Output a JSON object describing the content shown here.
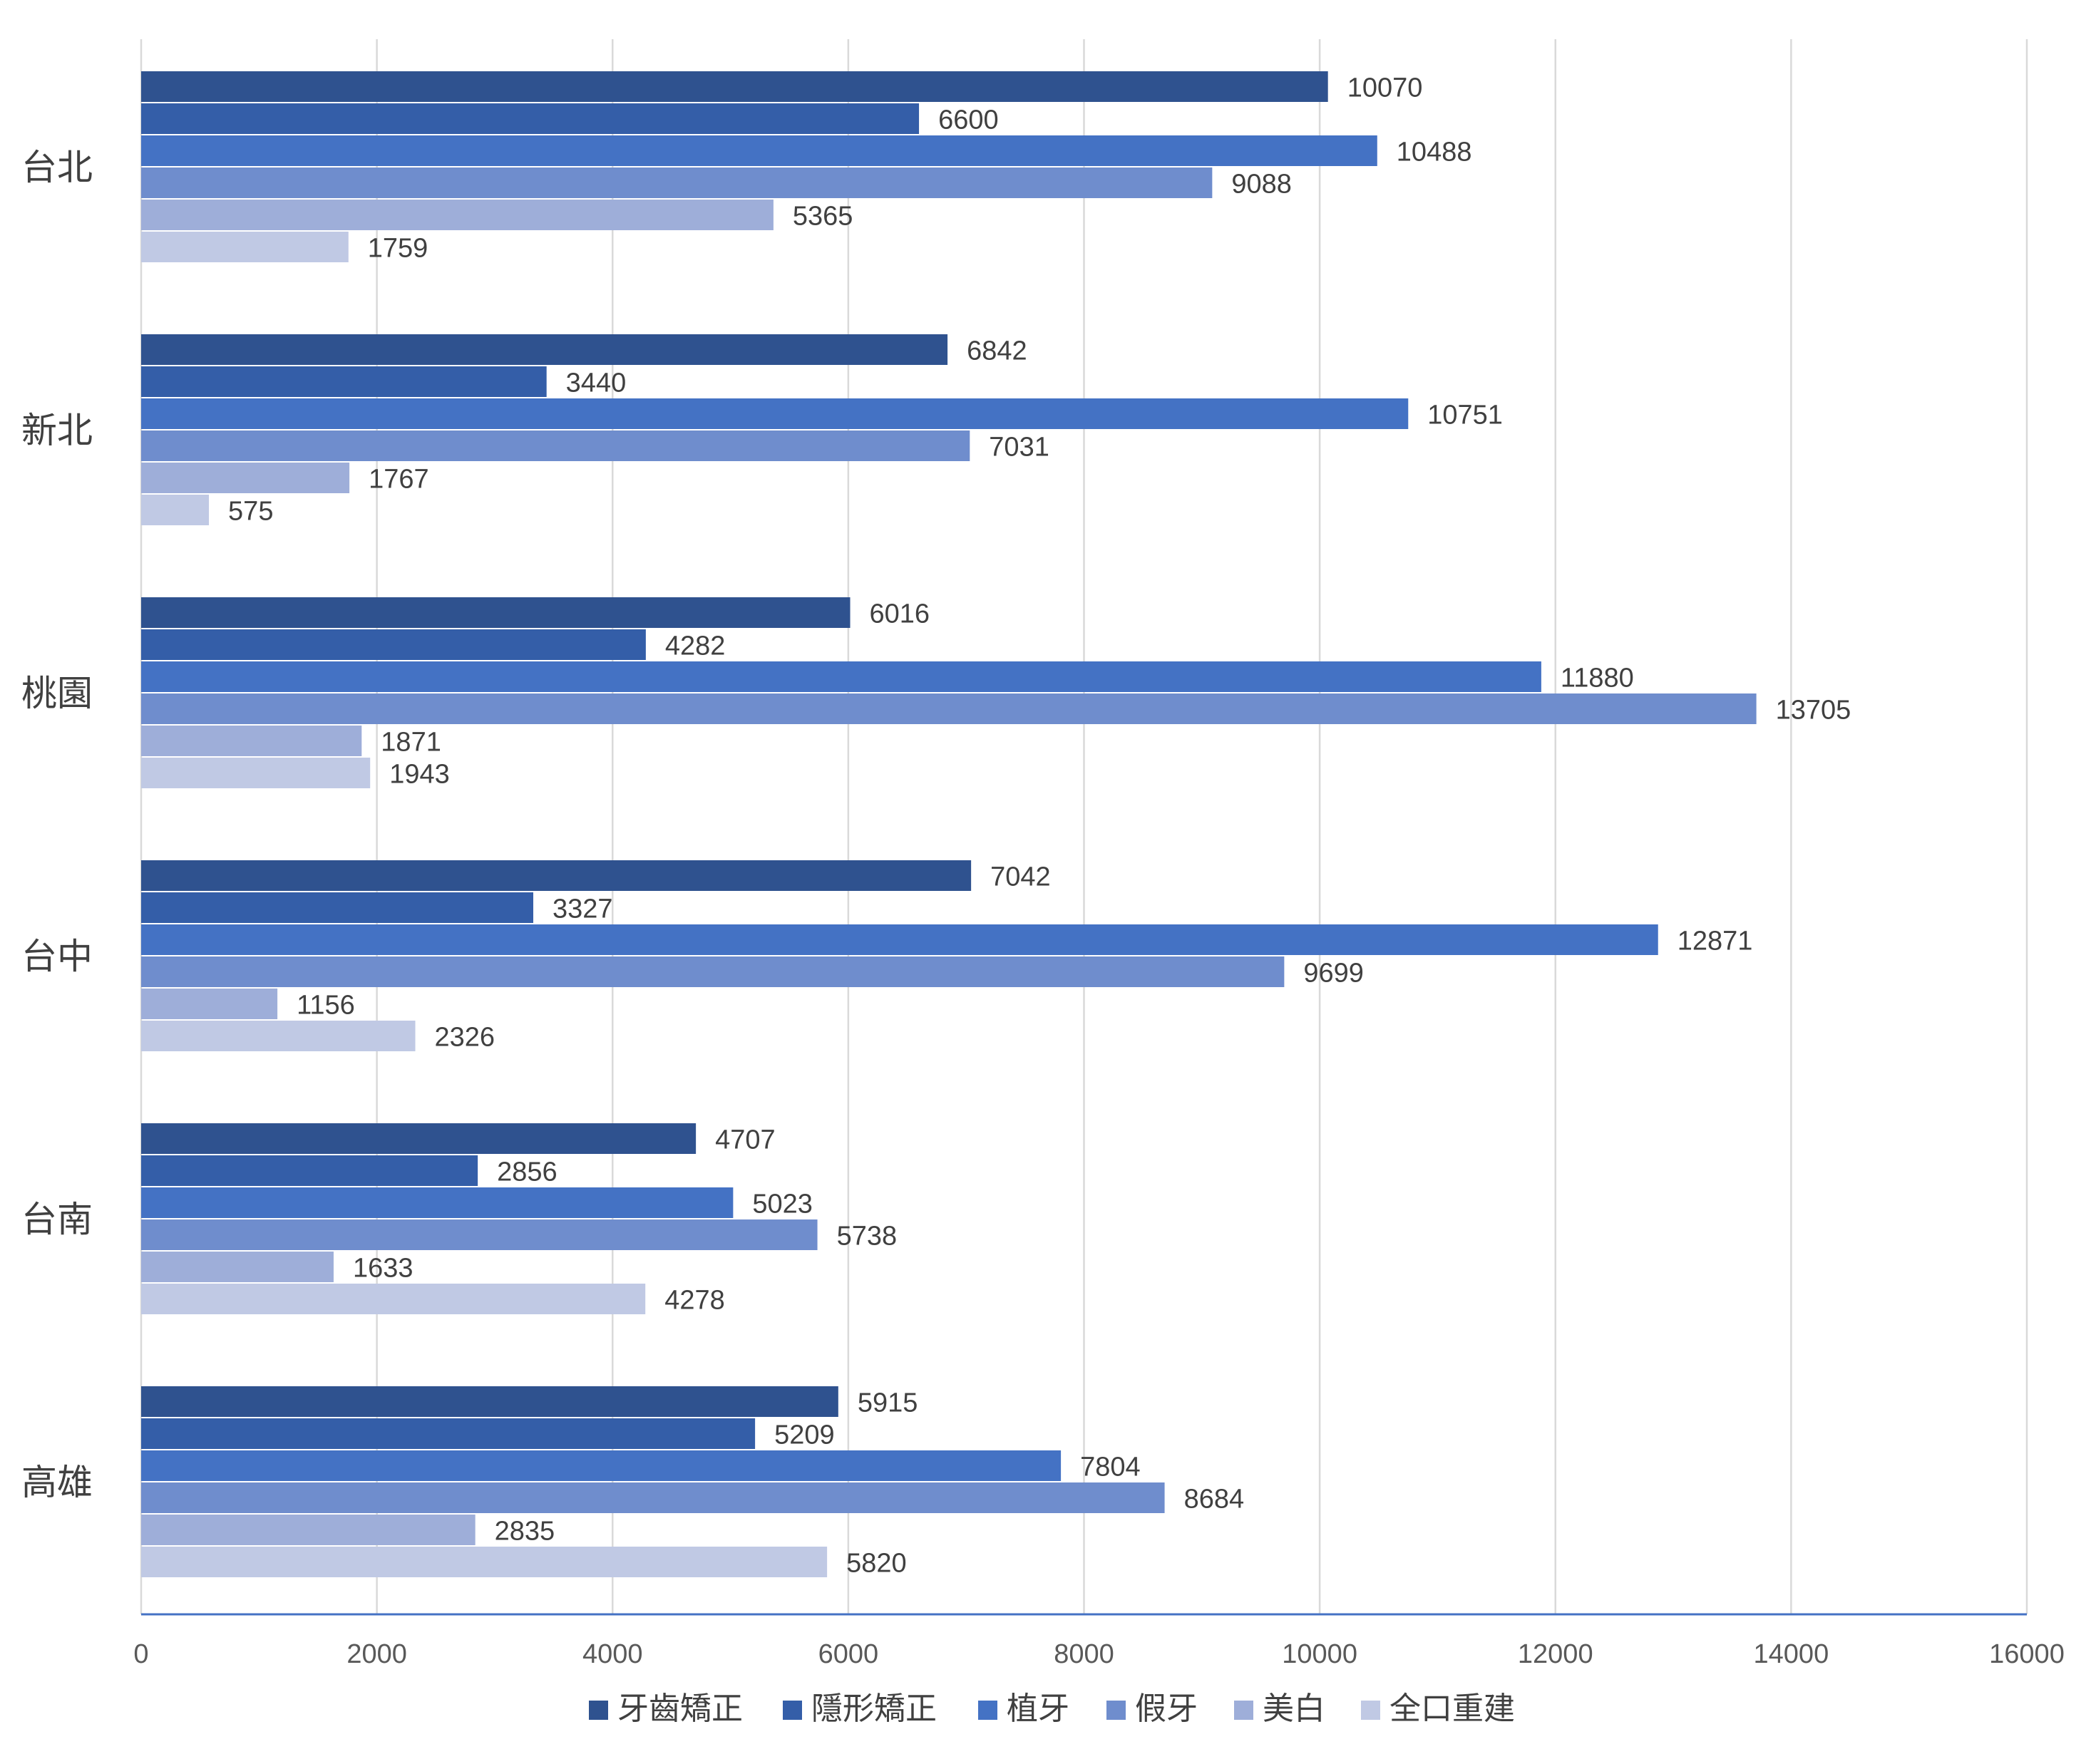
{
  "chart_data": {
    "type": "bar",
    "orientation": "horizontal",
    "categories": [
      "台北",
      "新北",
      "桃園",
      "台中",
      "台南",
      "高雄"
    ],
    "series": [
      {
        "name": "牙齒矯正",
        "color": "#2f528f",
        "values": [
          10070,
          6842,
          6016,
          7042,
          4707,
          5915
        ]
      },
      {
        "name": "隱形矯正",
        "color": "#345ea8",
        "values": [
          6600,
          3440,
          4282,
          3327,
          2856,
          5209
        ]
      },
      {
        "name": "植牙",
        "color": "#4472c4",
        "values": [
          10488,
          10751,
          11880,
          12871,
          5023,
          7804
        ]
      },
      {
        "name": "假牙",
        "color": "#6f8dcd",
        "values": [
          9088,
          7031,
          13705,
          9699,
          5738,
          8684
        ]
      },
      {
        "name": "美白",
        "color": "#9eaed9",
        "values": [
          5365,
          1767,
          1871,
          1156,
          1633,
          2835
        ]
      },
      {
        "name": "全口重建",
        "color": "#c0c9e4",
        "values": [
          1759,
          575,
          1943,
          2326,
          4278,
          5820
        ]
      }
    ],
    "xlim": [
      0,
      16000
    ],
    "xticks": [
      "0",
      "2000",
      "4000",
      "6000",
      "8000",
      "10000",
      "12000",
      "14000",
      "16000"
    ],
    "title": "",
    "xlabel": "",
    "ylabel": "",
    "grid": true,
    "legend_position": "bottom",
    "data_labels": true
  }
}
